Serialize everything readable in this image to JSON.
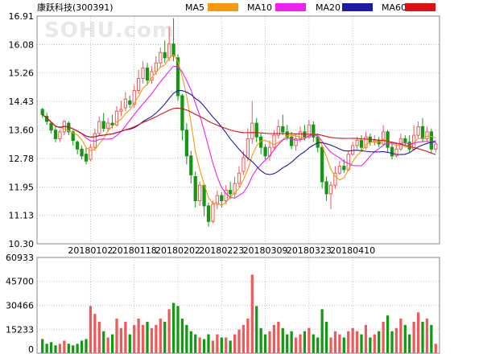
{
  "header": {
    "title": "康跃科技(300391)",
    "watermark": "SOHU.com"
  },
  "colors": {
    "up": "#ee5a5a",
    "down": "#119911",
    "ma5": "#f59a0f",
    "ma10": "#ee22ee",
    "ma20": "#1c1ca6",
    "ma60": "#dd1111",
    "grid": "#c4c4c4",
    "frame": "#888888"
  },
  "chart_data": {
    "type": "candlestick",
    "legend": [
      {
        "name": "MA5",
        "color": "#f59a0f"
      },
      {
        "name": "MA10",
        "color": "#ee22ee"
      },
      {
        "name": "MA20",
        "color": "#1c1ca6"
      },
      {
        "name": "MA60",
        "color": "#dd1111"
      }
    ],
    "price_axis": {
      "ticks": [
        "16.91",
        "16.08",
        "15.26",
        "14.43",
        "13.60",
        "12.78",
        "11.95",
        "11.13",
        "10.30"
      ],
      "ylim": [
        10.3,
        16.91
      ]
    },
    "volume_axis": {
      "ticks": [
        "60933",
        "45700",
        "30466",
        "15233",
        "0"
      ],
      "ylim": [
        0,
        60933
      ]
    },
    "x_tick_labels": [
      {
        "index": 11,
        "label": "20180102"
      },
      {
        "index": 21,
        "label": "20180118"
      },
      {
        "index": 31,
        "label": "20180202"
      },
      {
        "index": 41,
        "label": "20180223"
      },
      {
        "index": 51,
        "label": "20180309"
      },
      {
        "index": 61,
        "label": "20180323"
      },
      {
        "index": 71,
        "label": "20180410"
      }
    ],
    "candles": [
      [
        14.2,
        14.05,
        14.25,
        13.95,
        9000
      ],
      [
        14.0,
        13.85,
        14.1,
        13.75,
        6000
      ],
      [
        13.8,
        13.6,
        13.85,
        13.5,
        7000
      ],
      [
        13.6,
        13.35,
        13.7,
        13.25,
        5000
      ],
      [
        13.35,
        13.55,
        13.6,
        13.25,
        6000
      ],
      [
        13.55,
        13.85,
        13.9,
        13.45,
        8000
      ],
      [
        13.8,
        13.55,
        13.85,
        13.45,
        6000
      ],
      [
        13.55,
        13.3,
        13.6,
        13.15,
        5000
      ],
      [
        13.25,
        13.05,
        13.3,
        12.9,
        6000
      ],
      [
        13.05,
        12.85,
        13.15,
        12.75,
        8000
      ],
      [
        12.9,
        12.7,
        13.1,
        12.6,
        9000
      ],
      [
        12.75,
        13.1,
        13.2,
        12.7,
        30000
      ],
      [
        13.1,
        13.5,
        13.65,
        13.0,
        25000
      ],
      [
        13.5,
        13.85,
        14.0,
        13.45,
        20000
      ],
      [
        13.85,
        13.65,
        14.1,
        13.55,
        14000
      ],
      [
        13.65,
        13.8,
        13.95,
        13.55,
        10000
      ],
      [
        13.8,
        13.75,
        14.05,
        13.65,
        12000
      ],
      [
        13.75,
        14.15,
        14.3,
        13.7,
        22000
      ],
      [
        14.15,
        14.2,
        14.45,
        14.0,
        16000
      ],
      [
        14.25,
        14.5,
        14.7,
        14.15,
        20000
      ],
      [
        14.45,
        14.35,
        14.6,
        14.25,
        12000
      ],
      [
        14.35,
        14.75,
        14.9,
        14.25,
        18000
      ],
      [
        14.75,
        15.1,
        15.35,
        14.65,
        22000
      ],
      [
        15.1,
        15.4,
        15.6,
        14.95,
        18000
      ],
      [
        15.4,
        15.05,
        15.55,
        14.9,
        20000
      ],
      [
        15.05,
        15.3,
        15.45,
        14.95,
        16000
      ],
      [
        15.3,
        15.55,
        15.75,
        15.2,
        18000
      ],
      [
        15.55,
        15.85,
        16.0,
        15.4,
        22000
      ],
      [
        15.85,
        15.7,
        16.2,
        15.55,
        20000
      ],
      [
        15.7,
        16.1,
        16.6,
        15.6,
        28000
      ],
      [
        16.1,
        15.75,
        16.85,
        15.6,
        32000
      ],
      [
        15.7,
        14.6,
        15.8,
        14.45,
        30000
      ],
      [
        14.6,
        13.6,
        14.65,
        13.3,
        22000
      ],
      [
        13.6,
        12.85,
        13.8,
        12.6,
        18000
      ],
      [
        12.85,
        12.3,
        13.0,
        12.05,
        14000
      ],
      [
        12.25,
        11.55,
        12.4,
        11.35,
        12000
      ],
      [
        11.55,
        12.0,
        12.1,
        11.4,
        10000
      ],
      [
        12.0,
        11.4,
        12.05,
        11.1,
        9000
      ],
      [
        11.4,
        10.95,
        11.5,
        10.8,
        12000
      ],
      [
        10.95,
        11.45,
        11.55,
        10.9,
        8000
      ],
      [
        11.45,
        11.7,
        11.85,
        11.3,
        12000
      ],
      [
        11.7,
        11.55,
        11.8,
        11.35,
        10000
      ],
      [
        11.55,
        11.85,
        12.0,
        11.45,
        10000
      ],
      [
        11.85,
        11.75,
        12.1,
        11.6,
        8000
      ],
      [
        11.75,
        12.05,
        12.25,
        11.65,
        12000
      ],
      [
        12.05,
        12.35,
        12.55,
        11.95,
        15000
      ],
      [
        12.4,
        12.8,
        13.0,
        12.3,
        18000
      ],
      [
        12.8,
        13.35,
        13.65,
        12.7,
        22000
      ],
      [
        13.35,
        13.8,
        14.45,
        13.2,
        50000
      ],
      [
        13.8,
        13.4,
        13.95,
        13.25,
        30000
      ],
      [
        13.4,
        13.1,
        13.5,
        12.9,
        16000
      ],
      [
        13.1,
        12.85,
        13.2,
        12.75,
        12000
      ],
      [
        12.85,
        13.1,
        13.3,
        12.7,
        14000
      ],
      [
        13.1,
        13.45,
        13.6,
        13.05,
        18000
      ],
      [
        13.45,
        13.7,
        13.9,
        13.35,
        20000
      ],
      [
        13.7,
        13.55,
        14.05,
        13.45,
        16000
      ],
      [
        13.55,
        13.4,
        13.75,
        13.3,
        12000
      ],
      [
        13.4,
        13.15,
        13.55,
        13.05,
        14000
      ],
      [
        13.15,
        13.35,
        13.5,
        13.0,
        10000
      ],
      [
        13.35,
        13.55,
        13.7,
        13.25,
        12000
      ],
      [
        13.55,
        13.4,
        13.75,
        13.3,
        14000
      ],
      [
        13.4,
        13.75,
        13.9,
        13.35,
        16000
      ],
      [
        13.75,
        13.4,
        13.85,
        13.25,
        12000
      ],
      [
        13.4,
        13.1,
        13.5,
        12.95,
        10000
      ],
      [
        13.1,
        12.1,
        13.15,
        11.9,
        28000
      ],
      [
        12.1,
        11.75,
        12.25,
        11.55,
        20000
      ],
      [
        11.75,
        12.0,
        12.1,
        11.3,
        10000
      ],
      [
        12.0,
        12.35,
        12.55,
        11.9,
        14000
      ],
      [
        12.35,
        12.55,
        12.7,
        12.3,
        12000
      ],
      [
        12.55,
        12.45,
        12.75,
        12.35,
        10000
      ],
      [
        12.45,
        12.9,
        13.0,
        12.4,
        14000
      ],
      [
        12.9,
        13.15,
        13.25,
        12.85,
        16000
      ],
      [
        13.15,
        13.3,
        13.4,
        13.05,
        14000
      ],
      [
        13.3,
        13.1,
        13.45,
        13.0,
        12000
      ],
      [
        13.1,
        13.4,
        13.55,
        13.05,
        18000
      ],
      [
        13.4,
        13.25,
        13.5,
        13.15,
        10000
      ],
      [
        13.25,
        13.3,
        13.45,
        13.15,
        12000
      ],
      [
        13.3,
        13.2,
        13.4,
        13.1,
        14000
      ],
      [
        13.2,
        13.55,
        13.75,
        13.15,
        20000
      ],
      [
        13.55,
        13.1,
        13.6,
        12.95,
        24000
      ],
      [
        13.1,
        12.85,
        13.2,
        12.75,
        14000
      ],
      [
        12.85,
        13.05,
        13.2,
        12.8,
        16000
      ],
      [
        13.05,
        13.35,
        13.5,
        13.0,
        22000
      ],
      [
        13.35,
        13.25,
        13.45,
        13.15,
        18000
      ],
      [
        13.25,
        13.05,
        13.45,
        12.95,
        12000
      ],
      [
        13.05,
        13.45,
        13.75,
        13.0,
        20000
      ],
      [
        13.45,
        13.7,
        13.85,
        13.35,
        26000
      ],
      [
        13.7,
        13.35,
        13.95,
        13.25,
        20000
      ],
      [
        13.35,
        13.55,
        13.7,
        13.25,
        22000
      ],
      [
        13.55,
        13.05,
        13.65,
        12.95,
        18000
      ],
      [
        13.05,
        13.2,
        13.25,
        12.95,
        6000
      ]
    ],
    "note_candles": "each candle = [open, close, high, low, volume]"
  }
}
